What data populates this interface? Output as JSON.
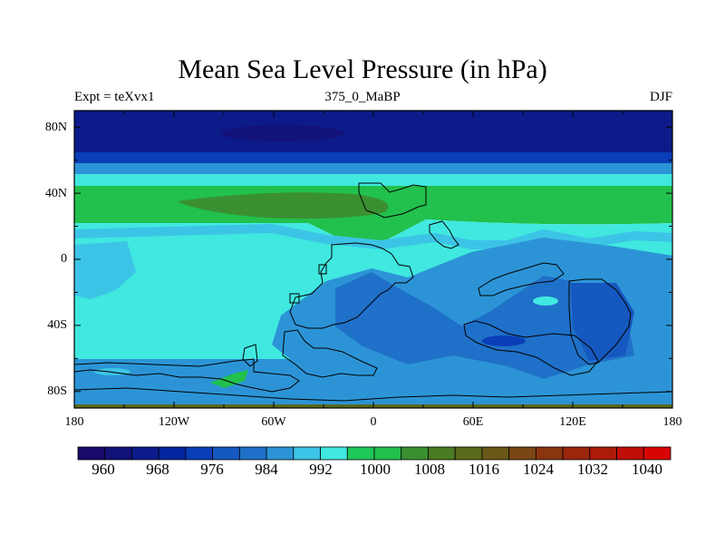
{
  "title": "Mean Sea Level Pressure (in hPa)",
  "subtitle_left": "Expt = teXvx1",
  "subtitle_center": "375_0_MaBP",
  "subtitle_right": "DJF",
  "map": {
    "lon_range": [
      -180,
      180
    ],
    "lat_range": [
      -90,
      90
    ],
    "y_ticks": [
      "80N",
      "40N",
      "0",
      "40S",
      "80S"
    ],
    "x_ticks": [
      "180",
      "120W",
      "60W",
      "0",
      "60E",
      "120E",
      "180"
    ]
  },
  "colorbar": {
    "colors": [
      "#170a6a",
      "#12127a",
      "#0c1a8a",
      "#0424a0",
      "#0a3eb8",
      "#1558bf",
      "#1f70c8",
      "#2c94d6",
      "#3cc4e6",
      "#40e8e0",
      "#1fc85a",
      "#22c04c",
      "#3a9030",
      "#4a7a22",
      "#5a6a1c",
      "#6a5818",
      "#7a4614",
      "#8a3410",
      "#9a260c",
      "#ac1a0a",
      "#c00e08",
      "#d80404"
    ],
    "labels": [
      "960",
      "968",
      "976",
      "984",
      "992",
      "1000",
      "1008",
      "1016",
      "1024",
      "1032",
      "1040"
    ]
  }
}
